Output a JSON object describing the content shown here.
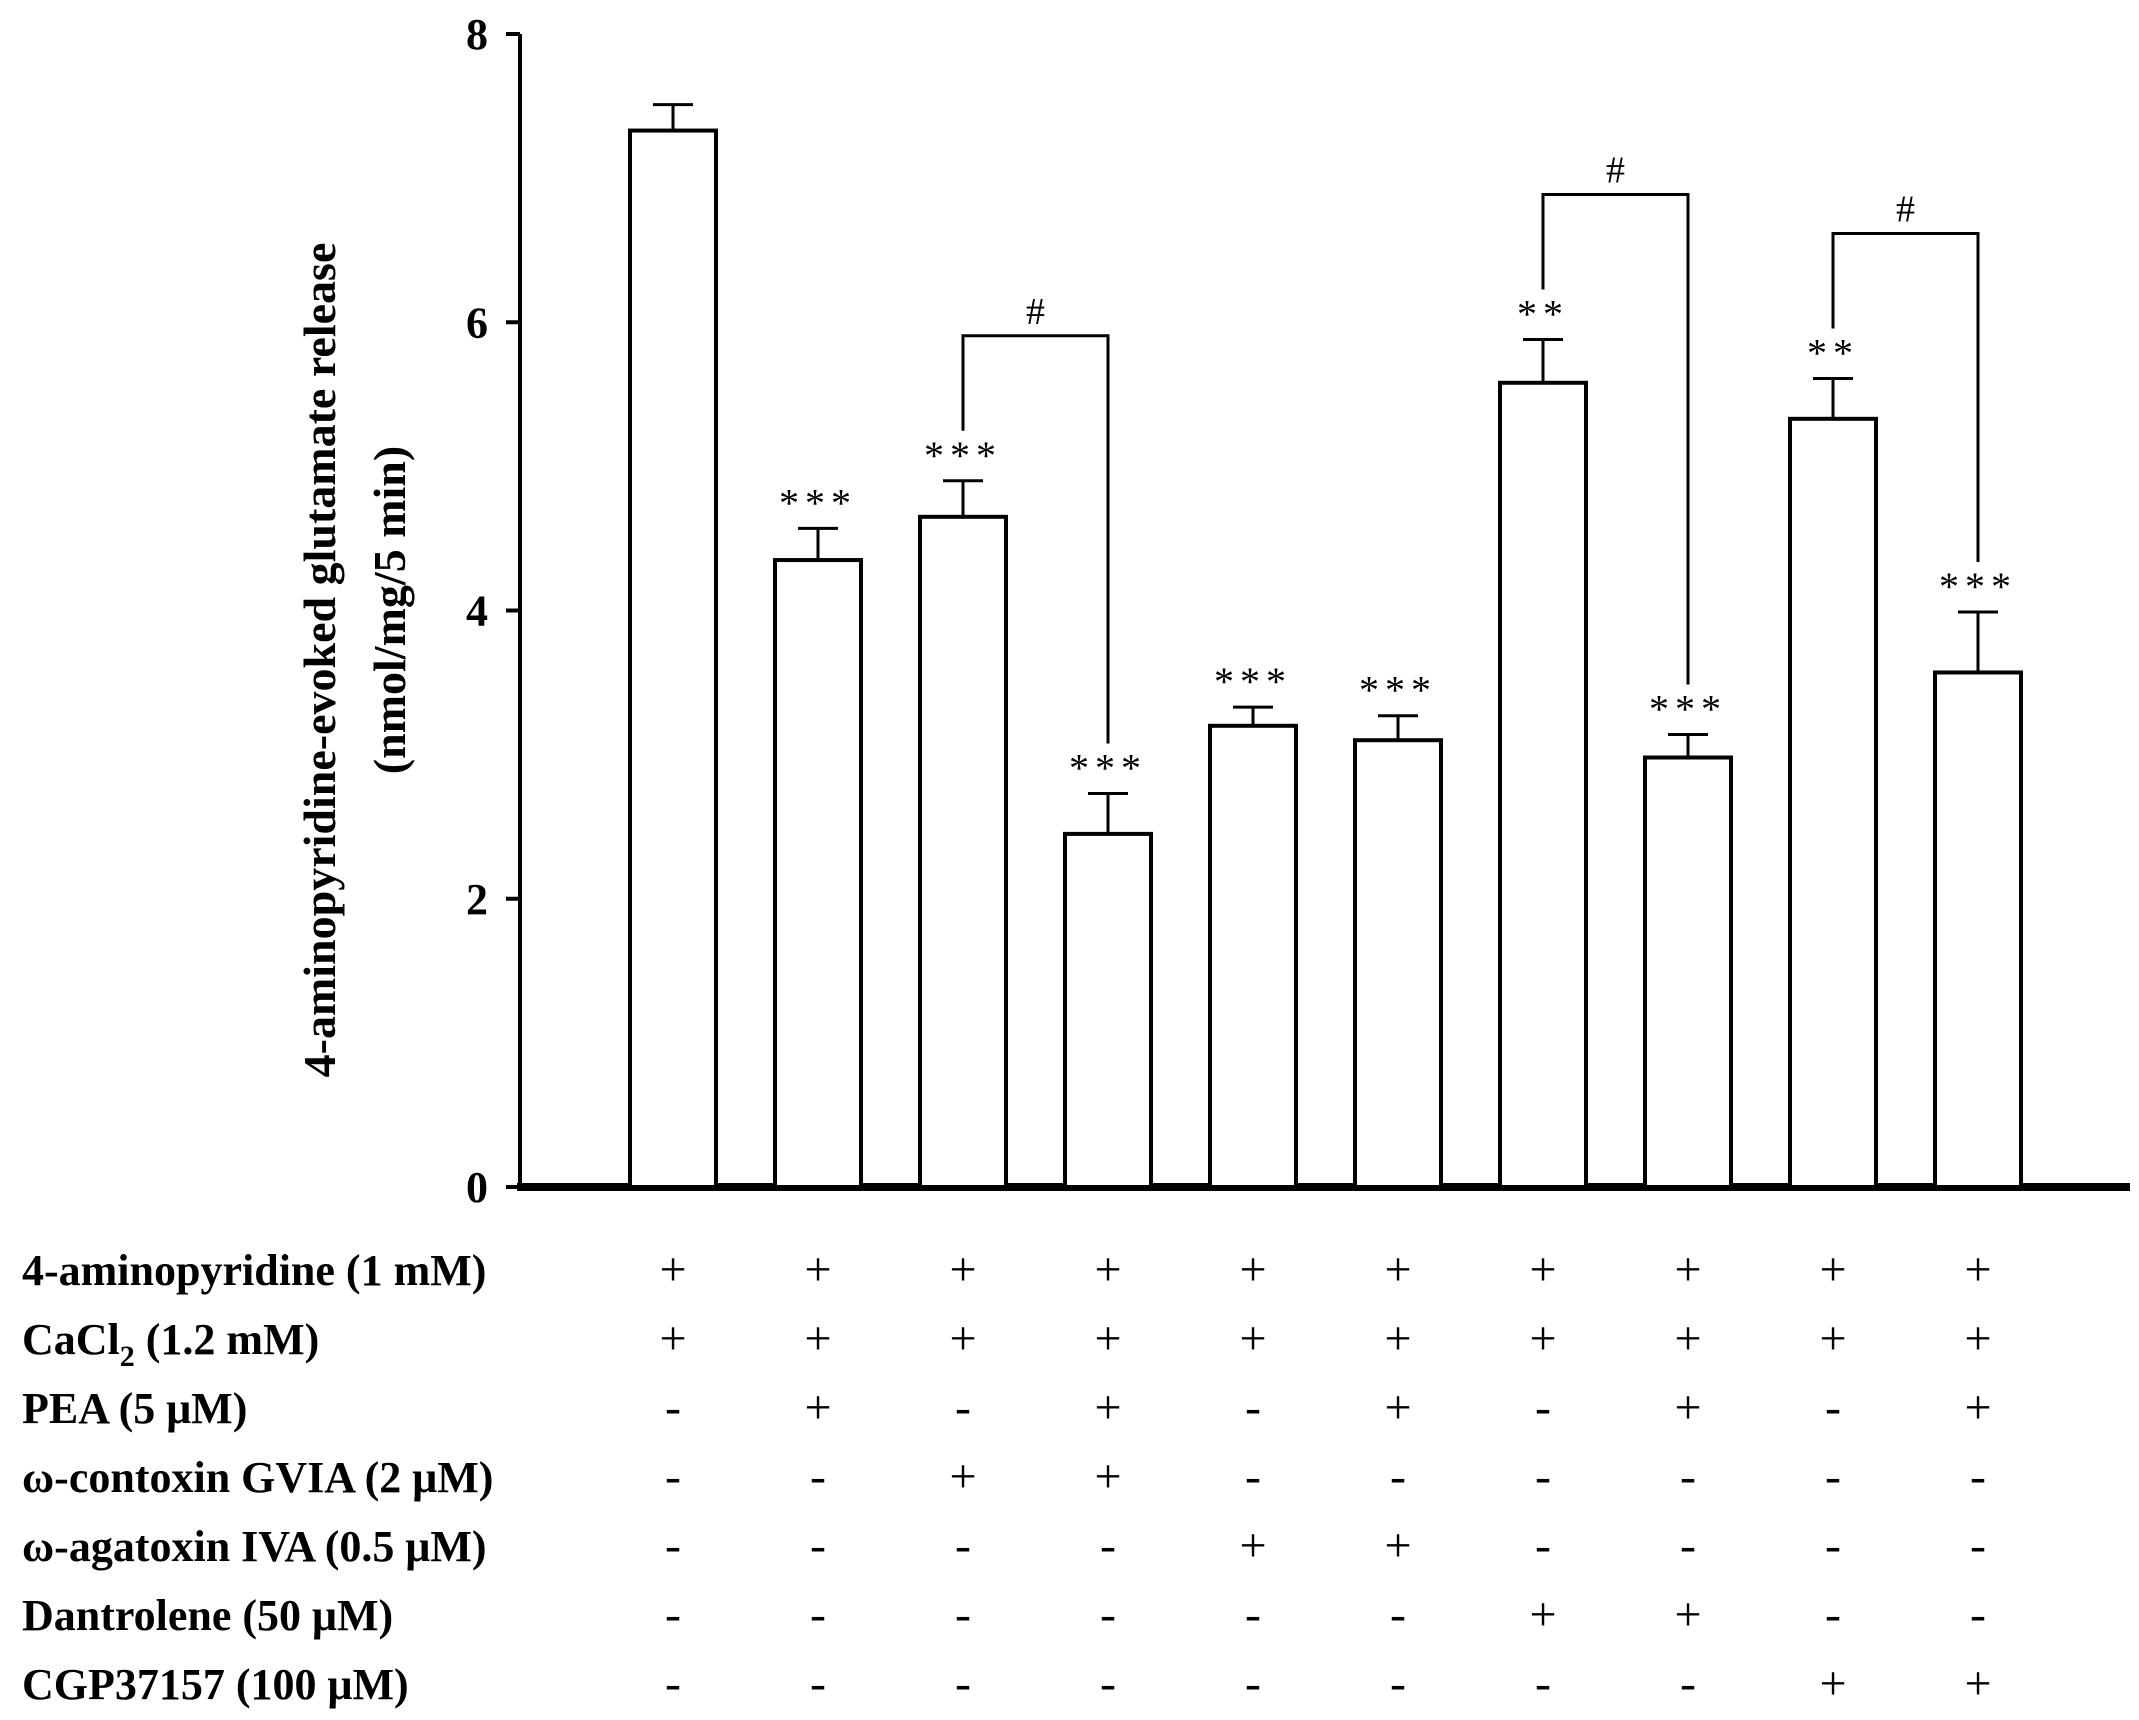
{
  "chart_data": {
    "type": "bar",
    "title": "",
    "xlabel": "",
    "ylabel_line1": "4-aminopyridine-evoked glutamate release",
    "ylabel_line2": "(nmol/mg/5 min)",
    "ylim": [
      0,
      8
    ],
    "yticks": [
      "0",
      "2",
      "4",
      "6",
      "8"
    ],
    "series": [
      {
        "name": "4-aminopyridine-evoked glutamate release",
        "values": [
          7.33,
          4.35,
          4.65,
          2.45,
          3.2,
          3.1,
          5.58,
          2.98,
          5.33,
          3.57
        ],
        "errors": [
          0.18,
          0.22,
          0.25,
          0.28,
          0.13,
          0.17,
          0.3,
          0.16,
          0.28,
          0.42
        ],
        "significance": [
          "",
          "***",
          "***",
          "***",
          "***",
          "***",
          "**",
          "***",
          "**",
          "***"
        ]
      }
    ],
    "comparisons": [
      {
        "from": 3,
        "to": 4,
        "label": "#"
      },
      {
        "from": 7,
        "to": 8,
        "label": "#"
      },
      {
        "from": 9,
        "to": 10,
        "label": "#"
      }
    ],
    "conditions": [
      {
        "label": "4-aminopyridine (1 mM)",
        "marks": [
          "+",
          "+",
          "+",
          "+",
          "+",
          "+",
          "+",
          "+",
          "+",
          "+"
        ]
      },
      {
        "label_main": "CaCl",
        "label_sub": "2",
        "label_rest": " (1.2 mM)",
        "marks": [
          "+",
          "+",
          "+",
          "+",
          "+",
          "+",
          "+",
          "+",
          "+",
          "+"
        ]
      },
      {
        "label": "PEA (5 μM)",
        "marks": [
          "-",
          "+",
          "-",
          "+",
          "-",
          "+",
          "-",
          "+",
          "-",
          "+"
        ]
      },
      {
        "label": "ω-contoxin GVIA (2 μM)",
        "marks": [
          "-",
          "-",
          "+",
          "+",
          "-",
          "-",
          "-",
          "-",
          "-",
          "-"
        ]
      },
      {
        "label": "ω-agatoxin IVA (0.5 μM)",
        "marks": [
          "-",
          "-",
          "-",
          "-",
          "+",
          "+",
          "-",
          "-",
          "-",
          "-"
        ]
      },
      {
        "label": "Dantrolene (50 μM)",
        "marks": [
          "-",
          "-",
          "-",
          "-",
          "-",
          "-",
          "+",
          "+",
          "-",
          "-"
        ]
      },
      {
        "label": "CGP37157 (100 μM)",
        "marks": [
          "-",
          "-",
          "-",
          "-",
          "-",
          "-",
          "-",
          "-",
          "+",
          "+"
        ]
      }
    ]
  }
}
